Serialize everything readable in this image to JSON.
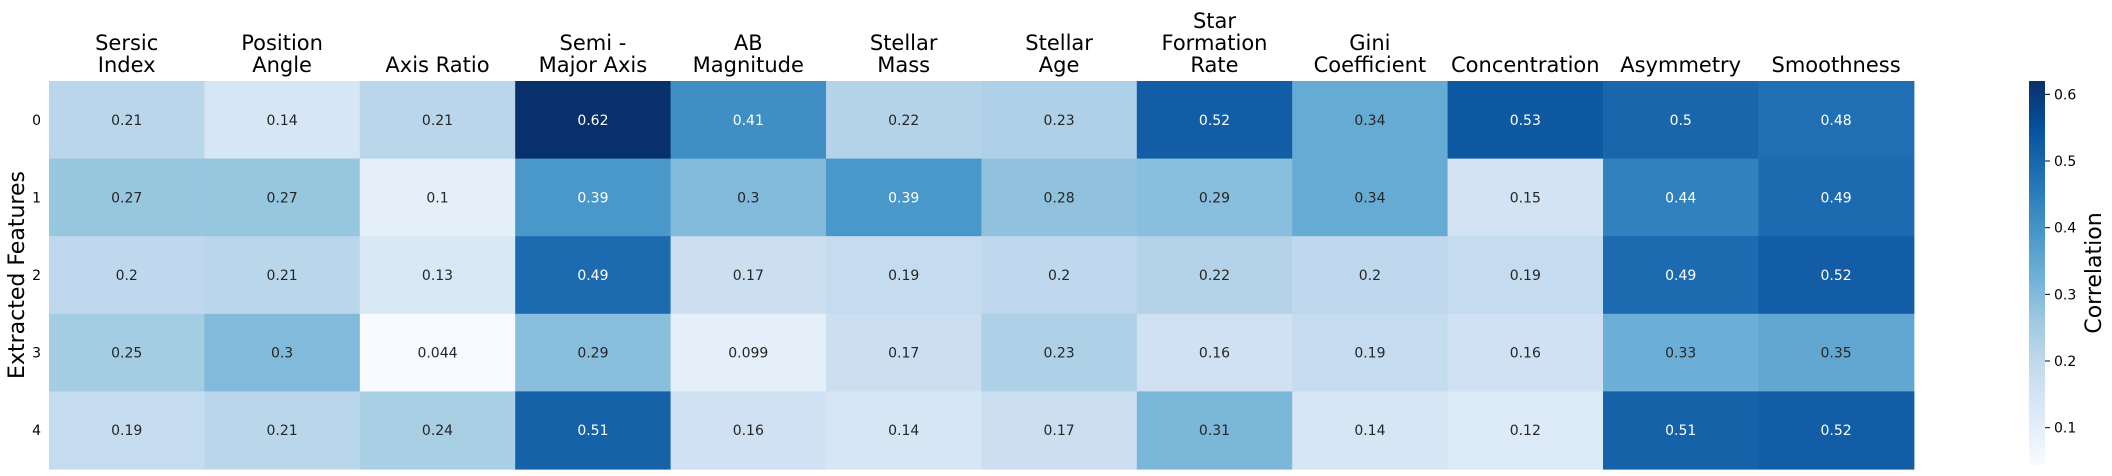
{
  "chart_data": {
    "type": "heatmap",
    "columns": [
      "Sersic\nIndex",
      "Position\nAngle",
      "Axis Ratio",
      "Semi -\nMajor Axis",
      "AB\nMagnitude",
      "Stellar\nMass",
      "Stellar\nAge",
      "Star\nFormation\nRate",
      "Gini\nCoefficient",
      "Concentration",
      "Asymmetry",
      "Smoothness"
    ],
    "rows": [
      "0",
      "1",
      "2",
      "3",
      "4"
    ],
    "values": [
      [
        0.21,
        0.14,
        0.21,
        0.62,
        0.41,
        0.22,
        0.23,
        0.52,
        0.34,
        0.53,
        0.5,
        0.48
      ],
      [
        0.27,
        0.27,
        0.1,
        0.39,
        0.3,
        0.39,
        0.28,
        0.29,
        0.34,
        0.15,
        0.44,
        0.49
      ],
      [
        0.2,
        0.21,
        0.13,
        0.49,
        0.17,
        0.19,
        0.2,
        0.22,
        0.2,
        0.19,
        0.49,
        0.52
      ],
      [
        0.25,
        0.3,
        0.044,
        0.29,
        0.099,
        0.17,
        0.23,
        0.16,
        0.19,
        0.16,
        0.33,
        0.35
      ],
      [
        0.19,
        0.21,
        0.24,
        0.51,
        0.16,
        0.14,
        0.17,
        0.31,
        0.14,
        0.12,
        0.51,
        0.52
      ]
    ],
    "value_labels": [
      [
        "0.21",
        "0.14",
        "0.21",
        "0.62",
        "0.41",
        "0.22",
        "0.23",
        "0.52",
        "0.34",
        "0.53",
        "0.5",
        "0.48"
      ],
      [
        "0.27",
        "0.27",
        "0.1",
        "0.39",
        "0.3",
        "0.39",
        "0.28",
        "0.29",
        "0.34",
        "0.15",
        "0.44",
        "0.49"
      ],
      [
        "0.2",
        "0.21",
        "0.13",
        "0.49",
        "0.17",
        "0.19",
        "0.2",
        "0.22",
        "0.2",
        "0.19",
        "0.49",
        "0.52"
      ],
      [
        "0.25",
        "0.3",
        "0.044",
        "0.29",
        "0.099",
        "0.17",
        "0.23",
        "0.16",
        "0.19",
        "0.16",
        "0.33",
        "0.35"
      ],
      [
        "0.19",
        "0.21",
        "0.24",
        "0.51",
        "0.16",
        "0.14",
        "0.17",
        "0.31",
        "0.14",
        "0.12",
        "0.51",
        "0.52"
      ]
    ],
    "ylabel": "Extracted Features",
    "colorbar_label": "Correlation",
    "colorbar_ticks": [
      0.1,
      0.2,
      0.3,
      0.4,
      0.5,
      0.6
    ],
    "colorbar_tick_labels": [
      "0.1",
      "0.2",
      "0.3",
      "0.4",
      "0.5",
      "0.6"
    ],
    "vmin": 0.044,
    "vmax": 0.62,
    "colormap": "Blues",
    "colormap_stops": [
      "#f7fbff",
      "#deebf7",
      "#c6dbef",
      "#9ecae1",
      "#6baed6",
      "#4292c6",
      "#2171b5",
      "#08519c",
      "#08306b"
    ],
    "xaxis_position": "top",
    "grid": false
  }
}
